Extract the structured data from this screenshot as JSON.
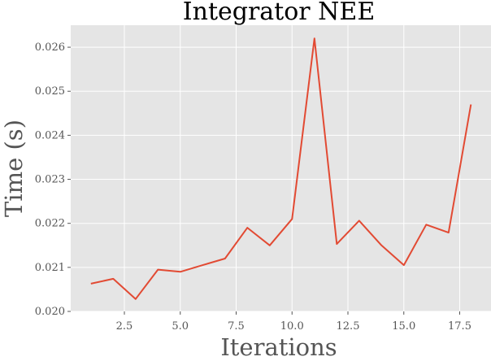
{
  "chart_data": {
    "type": "line",
    "title": "Integrator NEE",
    "xlabel": "Iterations",
    "ylabel": "Time (s)",
    "xlim": [
      0.1,
      18.9
    ],
    "ylim": [
      0.02,
      0.0265
    ],
    "x_ticks": [
      2.5,
      5.0,
      7.5,
      10.0,
      12.5,
      15.0,
      17.5
    ],
    "x_tick_labels": [
      "2.5",
      "5.0",
      "7.5",
      "10.0",
      "12.5",
      "15.0",
      "17.5"
    ],
    "y_ticks": [
      0.02,
      0.021,
      0.022,
      0.023,
      0.024,
      0.025,
      0.026
    ],
    "y_tick_labels": [
      "0.020",
      "0.021",
      "0.022",
      "0.023",
      "0.024",
      "0.025",
      "0.026"
    ],
    "grid": true,
    "background_color": "#E5E5E5",
    "series": [
      {
        "color": "#E24A33",
        "x": [
          1,
          2,
          3,
          4,
          5,
          6,
          7,
          8,
          9,
          10,
          11,
          12,
          13,
          14,
          15,
          16,
          17,
          18
        ],
        "y": [
          0.02063,
          0.02074,
          0.02028,
          0.02095,
          0.0209,
          0.02105,
          0.0212,
          0.0219,
          0.0215,
          0.0221,
          0.0262,
          0.02153,
          0.02206,
          0.0215,
          0.02105,
          0.02197,
          0.02179,
          0.0247
        ]
      }
    ]
  }
}
